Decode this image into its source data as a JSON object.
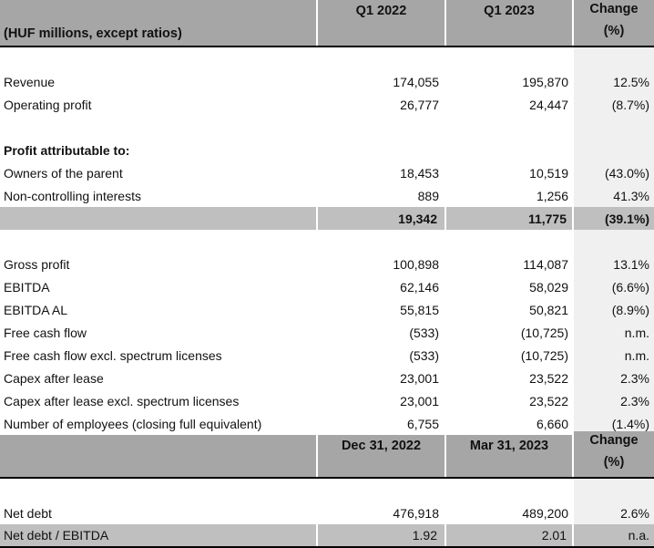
{
  "header1": {
    "label": "(HUF millions, except ratios)",
    "col1": "Q1 2022",
    "col2": "Q1 2023",
    "change_line1": "Change",
    "change_line2": "(%)"
  },
  "section1": [
    {
      "label": "Revenue",
      "v1": "174,055",
      "v2": "195,870",
      "chg": "12.5%"
    },
    {
      "label": "Operating profit",
      "v1": "26,777",
      "v2": "24,447",
      "chg": "(8.7%)"
    }
  ],
  "profit_heading": "Profit attributable to:",
  "section2": [
    {
      "label": "Owners of the parent",
      "v1": "18,453",
      "v2": "10,519",
      "chg": "(43.0%)"
    },
    {
      "label": "Non-controlling interests",
      "v1": "889",
      "v2": "1,256",
      "chg": "41.3%"
    }
  ],
  "total": {
    "v1": "19,342",
    "v2": "11,775",
    "chg": "(39.1%)"
  },
  "section3": [
    {
      "label": "Gross profit",
      "v1": "100,898",
      "v2": "114,087",
      "chg": "13.1%"
    },
    {
      "label": "EBITDA",
      "v1": "62,146",
      "v2": "58,029",
      "chg": "(6.6%)"
    },
    {
      "label": "EBITDA AL",
      "v1": "55,815",
      "v2": "50,821",
      "chg": "(8.9%)"
    },
    {
      "label": "Free cash flow",
      "v1": "(533)",
      "v2": "(10,725)",
      "chg": "n.m."
    },
    {
      "label": "Free cash flow excl. spectrum licenses",
      "v1": "(533)",
      "v2": "(10,725)",
      "chg": "n.m."
    },
    {
      "label": "Capex after lease",
      "v1": "23,001",
      "v2": "23,522",
      "chg": "2.3%"
    },
    {
      "label": "Capex after lease excl. spectrum licenses",
      "v1": "23,001",
      "v2": "23,522",
      "chg": "2.3%"
    },
    {
      "label": "Number of employees (closing full equivalent)",
      "v1": "6,755",
      "v2": "6,660",
      "chg": "(1.4%)"
    }
  ],
  "header2": {
    "col1": "Dec 31, 2022",
    "col2": "Mar 31, 2023",
    "change_line1": "Change",
    "change_line2": "(%)"
  },
  "section4": [
    {
      "label": "Net debt",
      "v1": "476,918",
      "v2": "489,200",
      "chg": "2.6%"
    }
  ],
  "ratio": {
    "label": "Net debt / EBITDA",
    "v1": "1.92",
    "v2": "2.01",
    "chg": "n.a."
  }
}
